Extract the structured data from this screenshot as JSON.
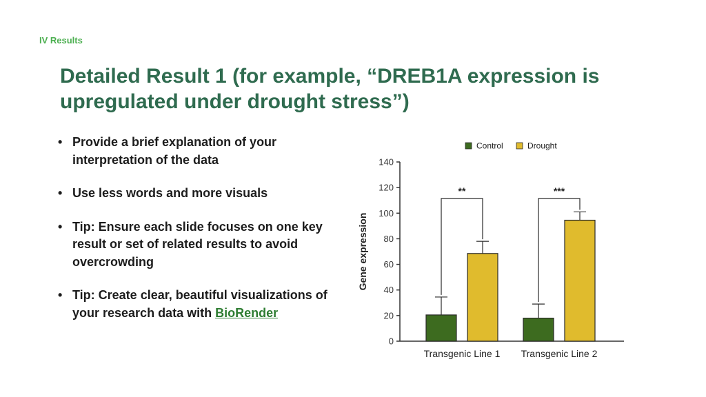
{
  "section": "IV  Results",
  "title_line1": "Detailed Result 1 (for example, “DREB1A expression is",
  "title_line2": "upregulated under drought stress”)",
  "bullets": [
    {
      "text": "Provide a brief explanation of your interpretation of the data"
    },
    {
      "text": "Use less words and more visuals"
    },
    {
      "text": "Tip: Ensure each slide focuses on one key result or set of related results to avoid overcrowding"
    },
    {
      "text": "Tip: Create clear, beautiful visualizations of your research data with ",
      "link": "BioRender"
    }
  ],
  "bullet_glyph": "•",
  "chart_data": {
    "type": "bar",
    "categories": [
      "Transgenic Line 1",
      "Transgenic Line 2"
    ],
    "series": [
      {
        "name": "Control",
        "color": "#3d6b1f",
        "values": [
          20.5,
          18
        ],
        "error": [
          14,
          11
        ]
      },
      {
        "name": "Drought",
        "color": "#e0bb2d",
        "values": [
          68.5,
          94.5
        ],
        "error": [
          9.5,
          6.5
        ]
      }
    ],
    "ylabel": "Gene expression",
    "xlabel": "",
    "ylim": [
      0,
      140
    ],
    "yticks": [
      0,
      20,
      40,
      60,
      80,
      100,
      120,
      140
    ],
    "significance": [
      "**",
      "***"
    ],
    "legend_position": "top",
    "grid": false
  }
}
